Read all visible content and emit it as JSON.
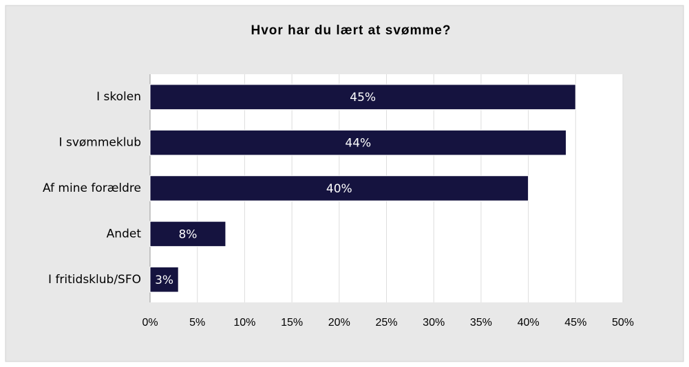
{
  "chart_data": {
    "type": "bar",
    "orientation": "horizontal",
    "title": "Hvor har du lært at svømme?",
    "categories": [
      "I skolen",
      "I svømmeklub",
      "Af mine forældre",
      "Andet",
      "I fritidsklub/SFO"
    ],
    "values": [
      45,
      44,
      40,
      8,
      3
    ],
    "value_labels": [
      "45%",
      "44%",
      "40%",
      "8%",
      "3%"
    ],
    "color": "#15133f",
    "xlim": [
      0,
      50
    ],
    "xticks": [
      {
        "value": 0,
        "label": "0%"
      },
      {
        "value": 5,
        "label": "5%"
      },
      {
        "value": 10,
        "label": "10%"
      },
      {
        "value": 15,
        "label": "15%"
      },
      {
        "value": 20,
        "label": "20%"
      },
      {
        "value": 25,
        "label": "25%"
      },
      {
        "value": 30,
        "label": "30%"
      },
      {
        "value": 35,
        "label": "35%"
      },
      {
        "value": 40,
        "label": "40%"
      },
      {
        "value": 45,
        "label": "45%"
      },
      {
        "value": 50,
        "label": "50%"
      }
    ],
    "grid": true
  }
}
